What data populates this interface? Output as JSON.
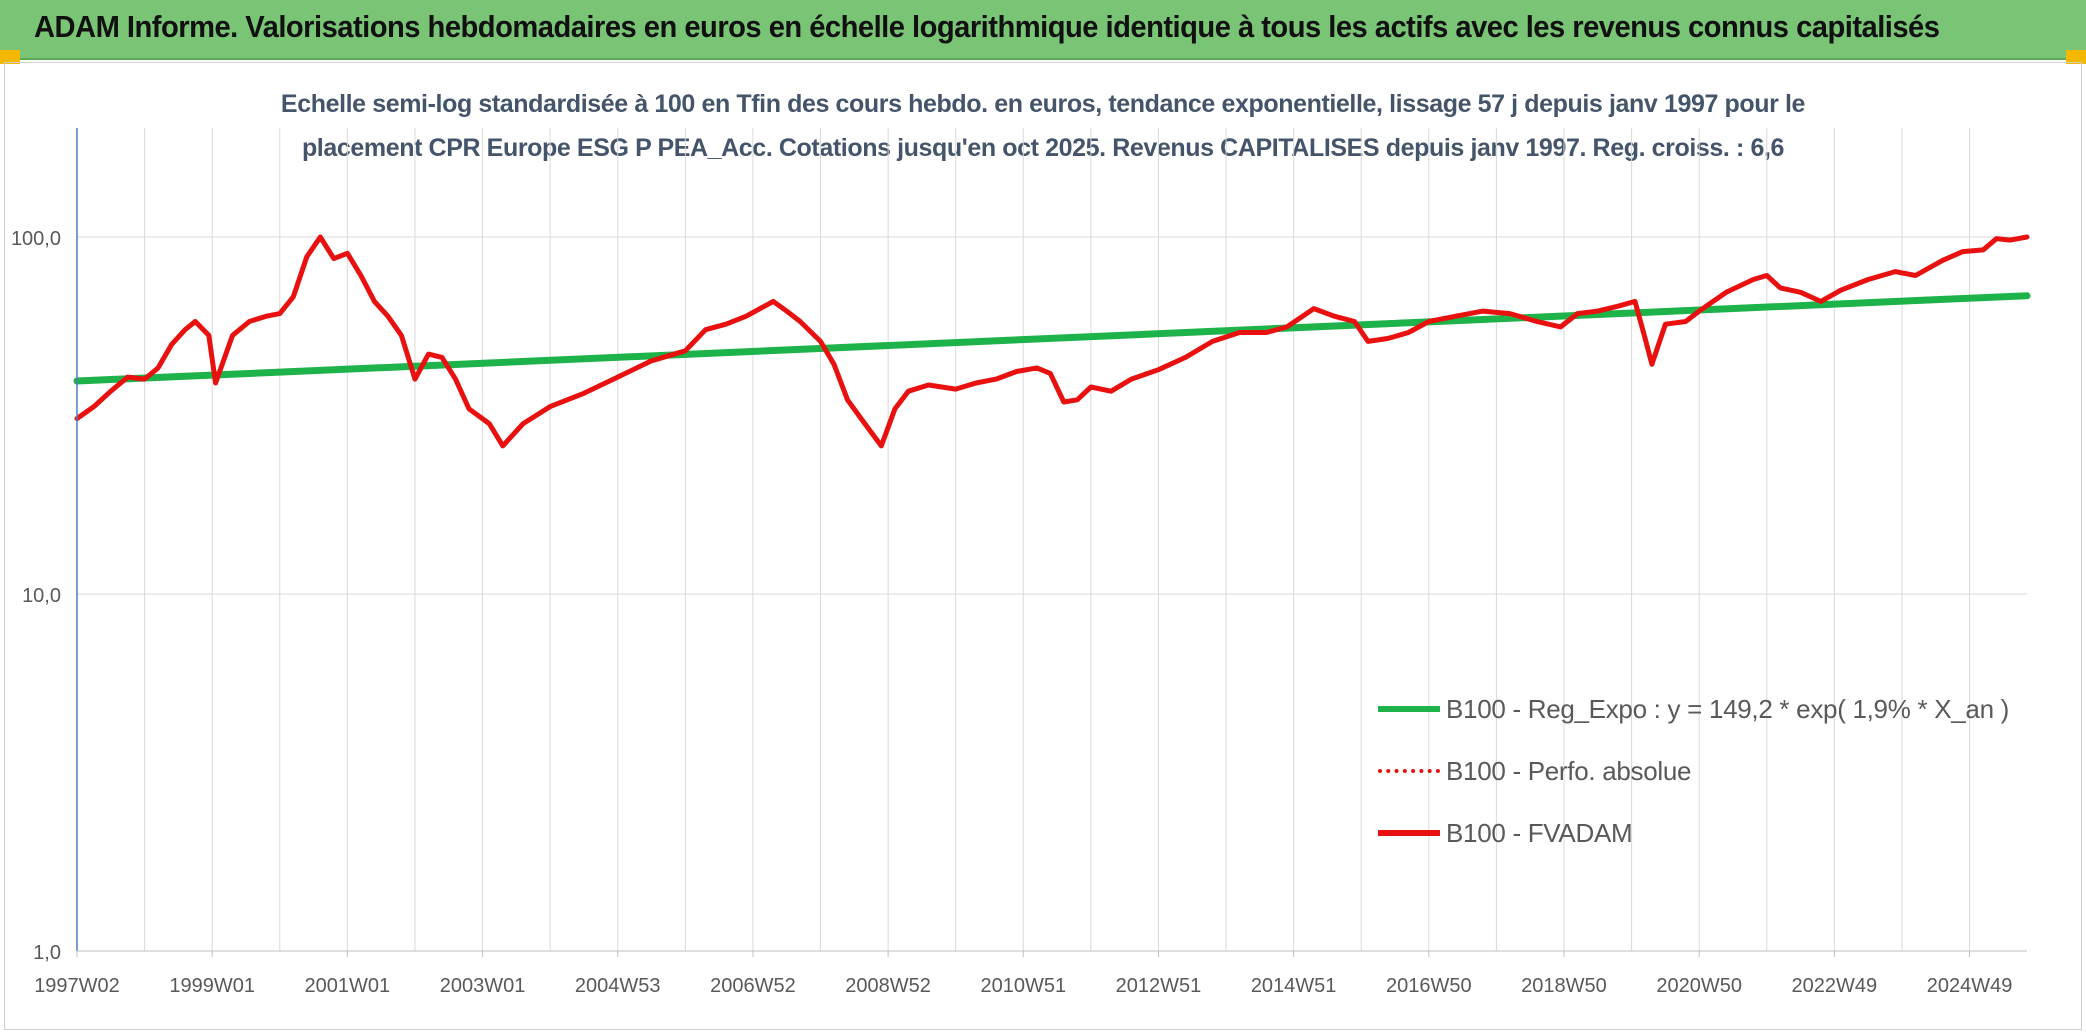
{
  "header": {
    "title": "ADAM Informe. Valorisations hebdomadaires en euros en échelle logarithmique identique à tous les actifs avec les revenus connus capitalisés"
  },
  "colors": {
    "banner": "#79c475",
    "corner": "#f5b800",
    "trend": "#1db34a",
    "price": "#e8110f",
    "axis": "#4a7ebb",
    "grid": "#d9d9d9"
  },
  "chart_data": {
    "type": "line",
    "title": "",
    "subtitle_lines": [
      "Echelle semi-log standardisée à 100 en Tfin des cours hebdo. en euros, tendance exponentielle, lissage 57 j depuis janv 1997 pour le",
      "placement CPR Europe ESG P PEA_Acc. Cotations jusqu'en oct 2025. Revenus CAPITALISES depuis janv 1997. Reg. croiss. : 6,6"
    ],
    "xlabel": "",
    "ylabel": "",
    "y_scale": "log",
    "ylim": [
      1,
      180
    ],
    "xlim": [
      1997.0,
      2025.85
    ],
    "y_ticks": [
      1,
      10,
      100
    ],
    "y_tick_labels": [
      "1,0",
      "10,0",
      "100,0"
    ],
    "x_tick_labels": [
      "1997W02",
      "1999W01",
      "2001W01",
      "2003W01",
      "2004W53",
      "2006W52",
      "2008W52",
      "2010W51",
      "2012W51",
      "2014W51",
      "2016W50",
      "2018W50",
      "2020W50",
      "2022W49",
      "2024W49"
    ],
    "x_tick_positions": [
      1997.0,
      1999.0,
      2001.0,
      2003.0,
      2005.0,
      2007.0,
      2009.0,
      2011.0,
      2013.0,
      2015.0,
      2017.0,
      2019.0,
      2021.0,
      2023.0,
      2025.0
    ],
    "grid": true,
    "legend_position": "bottom-right",
    "series": [
      {
        "name": "B100 - Reg_Expo : y = 149,2 * exp( 1,9% *  X_an )",
        "color": "#1db34a",
        "style": "solid",
        "x": [
          1997.0,
          2025.85
        ],
        "y": [
          39.5,
          68.5
        ]
      },
      {
        "name": "B100 - Perfo. absolue",
        "color": "#e8110f",
        "style": "dotted",
        "x": [],
        "y": []
      },
      {
        "name": "B100 - FVADAM",
        "color": "#e8110f",
        "style": "solid",
        "x": [
          1997.0,
          1997.25,
          1997.5,
          1997.75,
          1998.0,
          1998.2,
          1998.4,
          1998.6,
          1998.75,
          1998.95,
          1999.05,
          1999.3,
          1999.55,
          1999.8,
          2000.0,
          2000.2,
          2000.4,
          2000.6,
          2000.8,
          2001.0,
          2001.2,
          2001.4,
          2001.6,
          2001.8,
          2002.0,
          2002.2,
          2002.4,
          2002.6,
          2002.8,
          2003.1,
          2003.3,
          2003.6,
          2004.0,
          2004.5,
          2005.0,
          2005.5,
          2006.0,
          2006.3,
          2006.6,
          2006.9,
          2007.3,
          2007.5,
          2007.7,
          2008.0,
          2008.2,
          2008.4,
          2008.6,
          2008.9,
          2009.1,
          2009.3,
          2009.6,
          2010.0,
          2010.3,
          2010.6,
          2010.9,
          2011.2,
          2011.4,
          2011.6,
          2011.8,
          2012.0,
          2012.3,
          2012.6,
          2013.0,
          2013.4,
          2013.8,
          2014.2,
          2014.6,
          2014.9,
          2015.3,
          2015.6,
          2015.9,
          2016.1,
          2016.4,
          2016.7,
          2017.0,
          2017.4,
          2017.8,
          2018.2,
          2018.6,
          2018.95,
          2019.2,
          2019.5,
          2019.8,
          2020.05,
          2020.2,
          2020.3,
          2020.5,
          2020.8,
          2021.0,
          2021.4,
          2021.8,
          2022.0,
          2022.2,
          2022.5,
          2022.8,
          2023.1,
          2023.5,
          2023.9,
          2024.2,
          2024.6,
          2024.9,
          2025.2,
          2025.4,
          2025.6,
          2025.85
        ],
        "y": [
          31.0,
          33.5,
          37.0,
          40.5,
          40.0,
          43.0,
          50.0,
          55.0,
          58.0,
          53.0,
          39.0,
          53.0,
          58.0,
          60.0,
          61.0,
          68.0,
          88.0,
          100.0,
          87.0,
          90.0,
          78.0,
          66.0,
          60.0,
          53.0,
          40.0,
          47.0,
          46.0,
          40.0,
          33.0,
          30.0,
          26.0,
          30.0,
          33.5,
          36.5,
          40.5,
          45.0,
          48.0,
          55.0,
          57.0,
          60.0,
          66.0,
          62.0,
          58.0,
          51.0,
          44.0,
          35.0,
          31.0,
          26.0,
          33.0,
          37.0,
          38.5,
          37.5,
          39.0,
          40.0,
          42.0,
          43.0,
          41.5,
          34.5,
          35.0,
          38.0,
          37.0,
          40.0,
          42.5,
          46.0,
          51.0,
          54.0,
          54.0,
          56.0,
          63.0,
          60.0,
          58.0,
          51.0,
          52.0,
          54.0,
          58.0,
          60.0,
          62.0,
          61.0,
          58.0,
          56.0,
          61.0,
          62.0,
          64.0,
          66.0,
          52.0,
          44.0,
          57.0,
          58.0,
          62.0,
          70.0,
          76.0,
          78.0,
          72.0,
          70.0,
          66.0,
          71.0,
          76.0,
          80.0,
          78.0,
          86.0,
          91.0,
          92.0,
          99.0,
          98.0,
          100.0
        ]
      }
    ]
  }
}
